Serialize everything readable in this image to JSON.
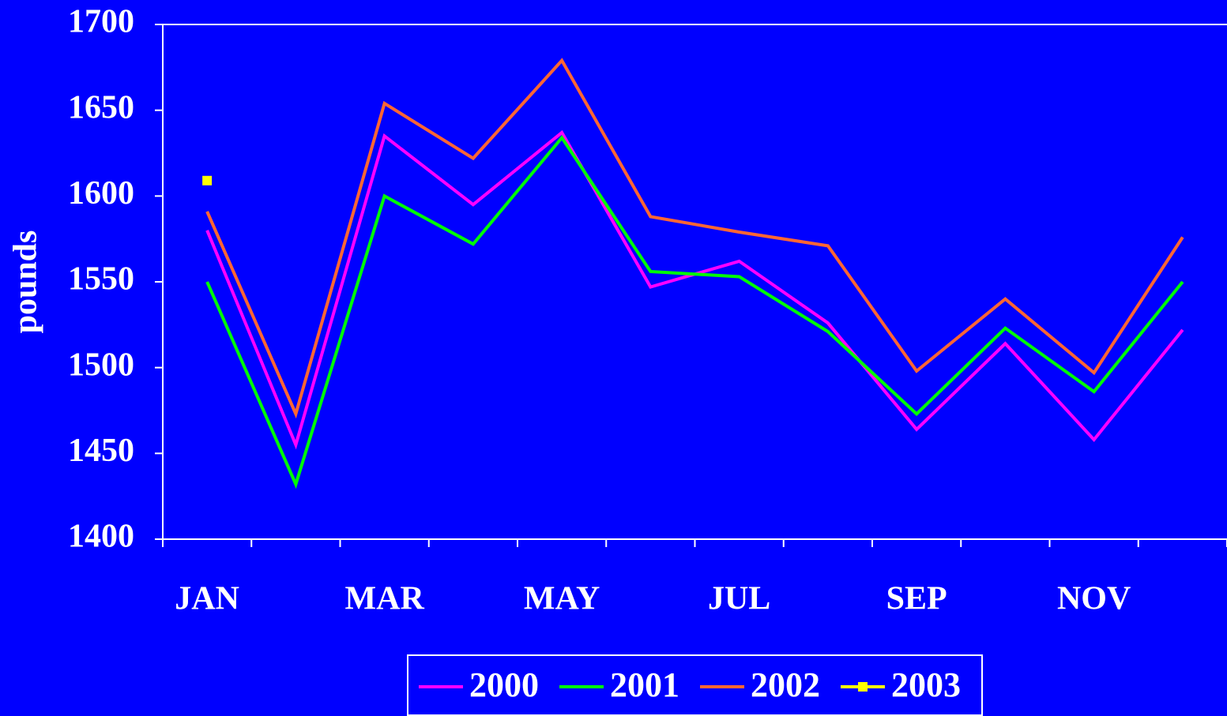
{
  "chart_data": {
    "type": "line",
    "y_label": "pounds",
    "categories": [
      "JAN",
      null,
      "MAR",
      null,
      "MAY",
      null,
      "JUL",
      null,
      "SEP",
      null,
      "NOV",
      null
    ],
    "series": [
      {
        "name": "2000",
        "color": "#ff00ff",
        "values": [
          1580,
          1455,
          1635,
          1595,
          1637,
          1547,
          1562,
          1526,
          1464,
          1514,
          1458,
          1522
        ]
      },
      {
        "name": "2001",
        "color": "#00ff00",
        "values": [
          1550,
          1432,
          1600,
          1572,
          1634,
          1556,
          1553,
          1521,
          1473,
          1523,
          1486,
          1550
        ]
      },
      {
        "name": "2002",
        "color": "#ff6633",
        "values": [
          1591,
          1473,
          1654,
          1622,
          1679,
          1588,
          1579,
          1571,
          1498,
          1540,
          1497,
          1576
        ]
      },
      {
        "name": "2003",
        "color": "#ffff00",
        "marker": "square",
        "values": [
          1609,
          null,
          null,
          null,
          null,
          null,
          null,
          null,
          null,
          null,
          null,
          null
        ]
      }
    ],
    "ylim": [
      1400,
      1700
    ],
    "yticks": [
      1400,
      1450,
      1500,
      1550,
      1600,
      1650,
      1700
    ],
    "legend": "bottom"
  }
}
